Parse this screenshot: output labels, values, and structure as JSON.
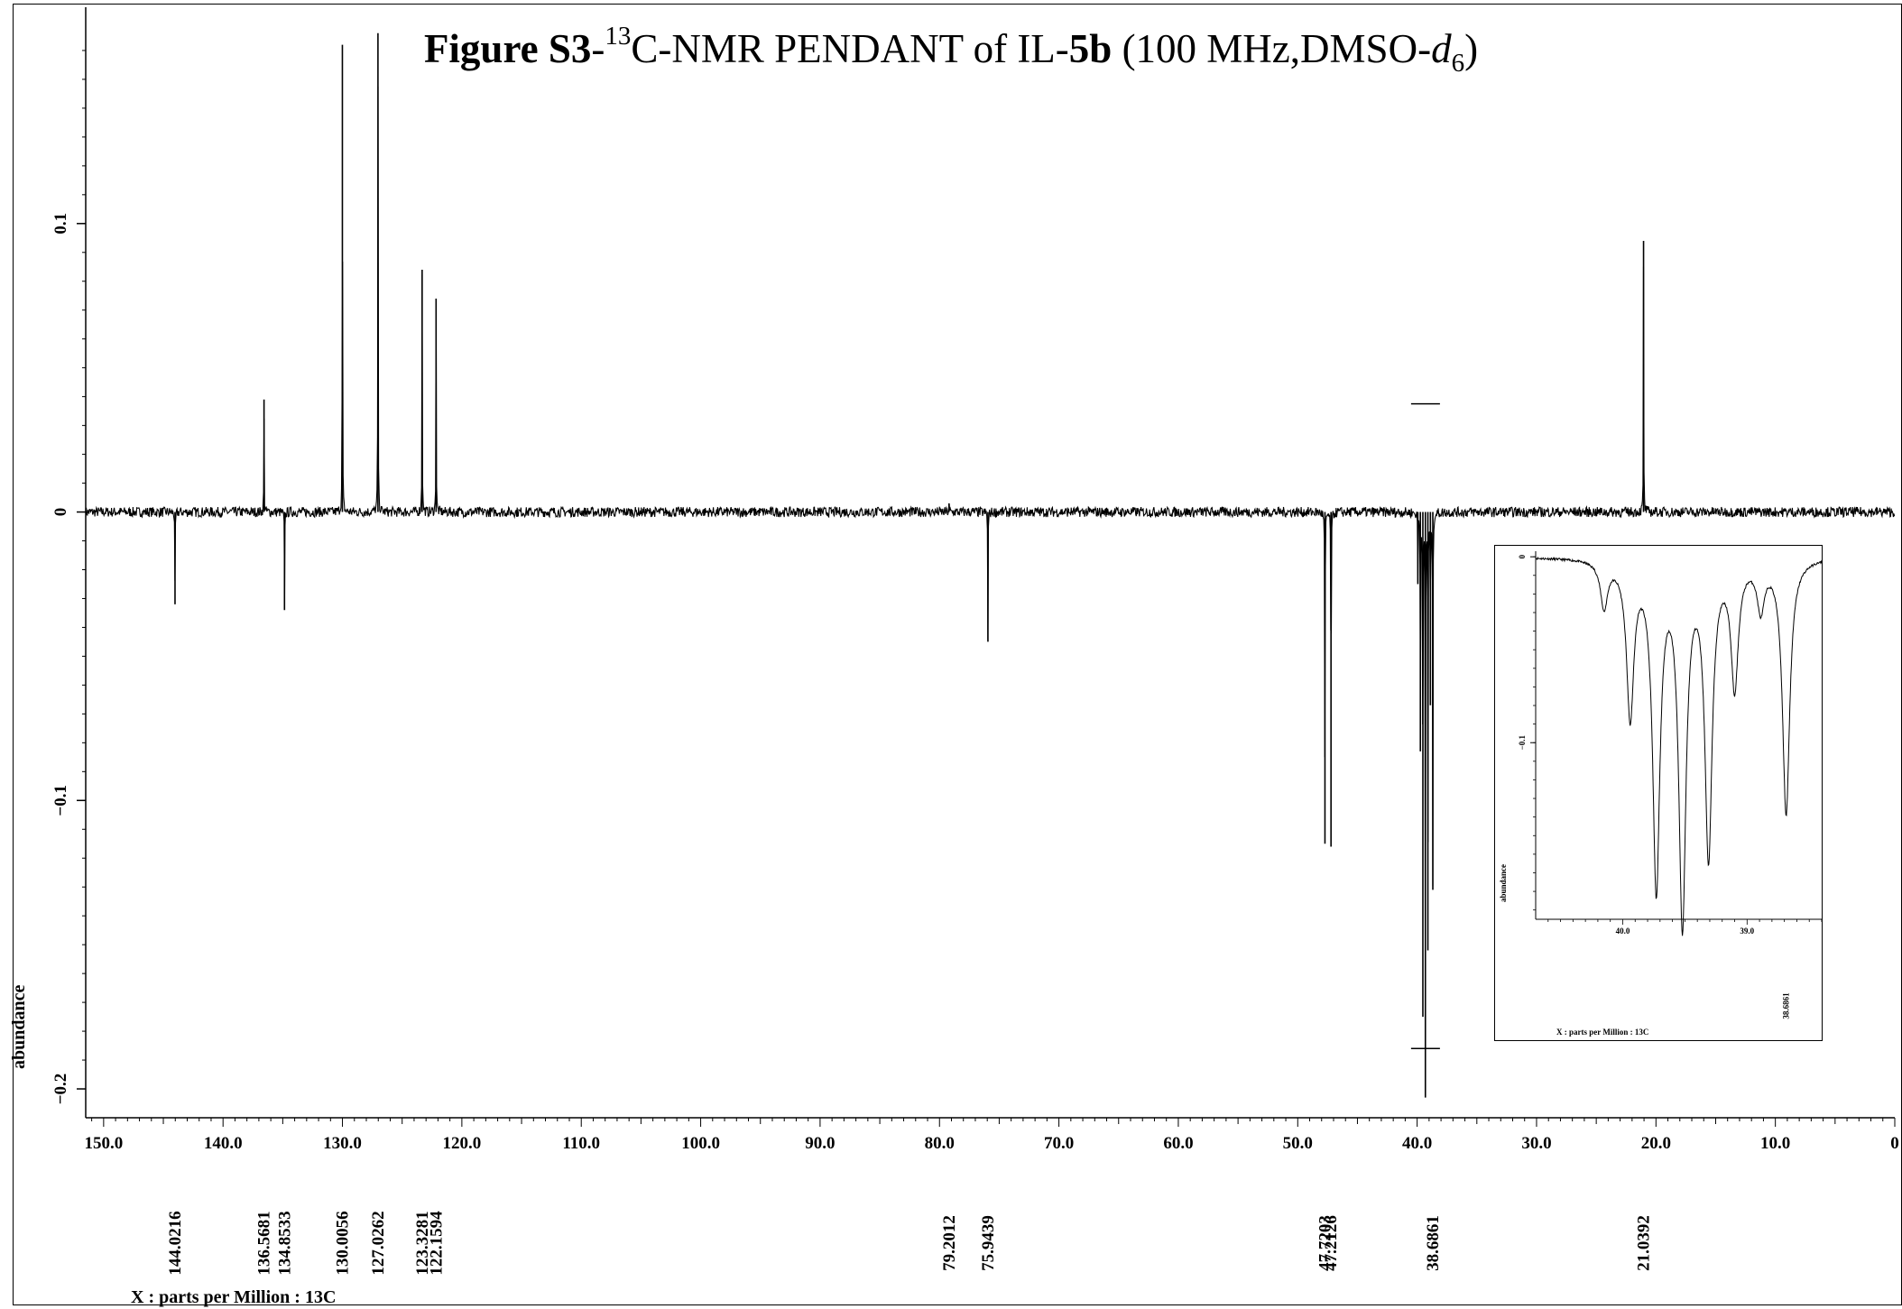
{
  "chart_data": [
    {
      "type": "line",
      "title": {
        "prefix": "Figure S3",
        "sup": "13",
        "mid": "C-NMR PENDANT of IL-",
        "compound": "5b",
        "cond_pre": " (100 MHz,DMSO-",
        "solvent_sym": "d",
        "solvent_sub": "6",
        "cond_post": ")"
      },
      "xlabel": "X : parts per Million : 13C",
      "ylabel": "abundance",
      "xlim": [
        151.5,
        0
      ],
      "ylim": [
        -0.21,
        0.175
      ],
      "x_reversed": true,
      "x_ticks": [
        150.0,
        140.0,
        130.0,
        120.0,
        110.0,
        100.0,
        90.0,
        80.0,
        70.0,
        60.0,
        50.0,
        40.0,
        30.0,
        20.0,
        10.0,
        0
      ],
      "x_tick_labels": [
        "150.0",
        "140.0",
        "130.0",
        "120.0",
        "110.0",
        "100.0",
        "90.0",
        "80.0",
        "70.0",
        "60.0",
        "50.0",
        "40.0",
        "30.0",
        "20.0",
        "10.0",
        "0"
      ],
      "y_ticks": [
        0.1,
        0,
        -0.1,
        -0.2
      ],
      "y_tick_labels": [
        "0.1",
        "0",
        "−0.1",
        "−0.2"
      ],
      "peaks": [
        {
          "ppm": 144.0216,
          "height": -0.032
        },
        {
          "ppm": 136.5681,
          "height": 0.039
        },
        {
          "ppm": 134.8533,
          "height": -0.034
        },
        {
          "ppm": 130.0056,
          "height": 0.162
        },
        {
          "ppm": 127.0262,
          "height": 0.166
        },
        {
          "ppm": 123.3281,
          "height": 0.084
        },
        {
          "ppm": 122.1594,
          "height": 0.074
        },
        {
          "ppm": 79.2012,
          "height": 0.003
        },
        {
          "ppm": 75.9439,
          "height": -0.045
        },
        {
          "ppm": 47.7203,
          "height": -0.115
        },
        {
          "ppm": 47.2126,
          "height": -0.116
        },
        {
          "ppm": 39.94,
          "height": -0.025
        },
        {
          "ppm": 39.73,
          "height": -0.083
        },
        {
          "ppm": 39.52,
          "height": -0.175
        },
        {
          "ppm": 39.31,
          "height": -0.203
        },
        {
          "ppm": 39.1,
          "height": -0.152
        },
        {
          "ppm": 38.89,
          "height": -0.067
        },
        {
          "ppm": 38.6861,
          "height": -0.131
        },
        {
          "ppm": 21.0392,
          "height": 0.094
        }
      ],
      "peak_labels": [
        "144.0216",
        "136.5681",
        "134.8533",
        "130.0056",
        "127.0262",
        "123.3281",
        "122.1594",
        "79.2012",
        "75.9439",
        "47.7203",
        "47.2126",
        "38.6861",
        "21.0392"
      ],
      "peak_label_ppm": [
        144.0216,
        136.5681,
        134.8533,
        130.0056,
        127.0262,
        123.3281,
        122.1594,
        79.2012,
        75.9439,
        47.7203,
        47.2126,
        38.6861,
        21.0392
      ]
    },
    {
      "type": "line",
      "role": "inset",
      "xlabel": "X : parts per Million : 13C",
      "ylabel": "abundance",
      "xlim": [
        40.7,
        38.4
      ],
      "ylim": [
        -0.195,
        0.003
      ],
      "x_ticks": [
        40.0,
        39.0
      ],
      "x_tick_labels": [
        "40.0",
        "39.0"
      ],
      "y_ticks": [
        0,
        -0.1
      ],
      "y_tick_labels": [
        "0",
        "−0.1"
      ],
      "peaks": [
        {
          "ppm": 40.15,
          "height": -0.025
        },
        {
          "ppm": 39.94,
          "height": -0.083
        },
        {
          "ppm": 39.73,
          "height": -0.175
        },
        {
          "ppm": 39.52,
          "height": -0.193
        },
        {
          "ppm": 39.31,
          "height": -0.157
        },
        {
          "ppm": 39.1,
          "height": -0.067
        },
        {
          "ppm": 38.89,
          "height": -0.025
        },
        {
          "ppm": 38.6861,
          "height": -0.137
        }
      ],
      "peak_labels": [
        "38.6861"
      ],
      "peak_label_ppm": [
        38.6861
      ]
    }
  ]
}
